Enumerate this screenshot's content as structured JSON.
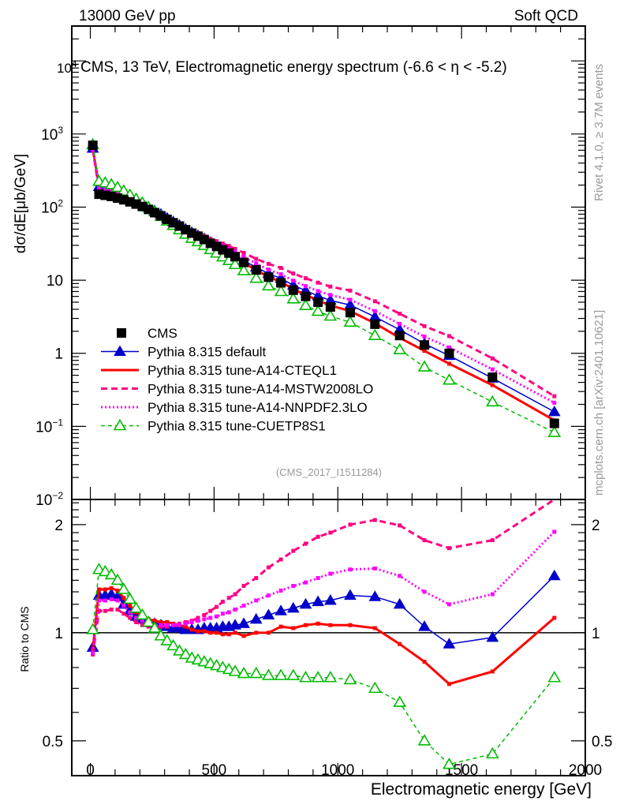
{
  "header": {
    "left": "13000 GeV pp",
    "right": "Soft QCD",
    "title": "CMS, 13 TeV, Electromagnetic energy spectrum (-6.6 < η < -5.2)",
    "side_top": "Rivet 4.1.0, ≥ 3.7M events",
    "side_bottom": "mcplots.cern.ch [arXiv:2401.10621]",
    "analysis_id": "(CMS_2017_I1511284)"
  },
  "colors": {
    "cms": "#000000",
    "default": "#0000cc",
    "cteql1": "#ff0000",
    "mstw": "#ff0080",
    "nnpdf": "#ff00ff",
    "cuetp8s1": "#00bb00"
  },
  "chart_data": [
    {
      "type": "line",
      "title": "CMS, 13 TeV, Electromagnetic energy spectrum (-6.6 < η < -5.2)",
      "xlabel": "Electromagnetic energy [GeV]",
      "ylabel": "dσ/dE[μb/GeV]",
      "yscale": "log",
      "xlim": [
        -75,
        2000
      ],
      "ylim": [
        0.01,
        30000
      ],
      "ytick_labels": [
        "10^-2",
        "10^-1",
        "1",
        "10",
        "10^2",
        "10^3",
        "10^4"
      ],
      "xtick_labels": [
        "0",
        "500",
        "1000",
        "1500",
        "2000"
      ],
      "legend_position": "bottom-left",
      "x": [
        10,
        35,
        60,
        85,
        110,
        135,
        160,
        185,
        210,
        235,
        260,
        285,
        310,
        335,
        360,
        385,
        410,
        435,
        460,
        485,
        510,
        535,
        560,
        585,
        620,
        670,
        720,
        770,
        820,
        870,
        920,
        970,
        1050,
        1150,
        1250,
        1350,
        1450,
        1625,
        1875
      ],
      "series": [
        {
          "name": "CMS",
          "key": "cms",
          "style": "square",
          "values": [
            700,
            150,
            145,
            140,
            133,
            126,
            118,
            110,
            102,
            93,
            84,
            76,
            68,
            61,
            55,
            49,
            44,
            40,
            36,
            32,
            29,
            26,
            23.5,
            21,
            17.5,
            13.8,
            11.0,
            9.2,
            7.3,
            6.0,
            5.0,
            4.3,
            3.6,
            2.5,
            1.75,
            1.3,
            1.0,
            0.47,
            0.11
          ]
        },
        {
          "name": "Pythia 8.315 default",
          "key": "default",
          "style": "solid-filled-triangle",
          "ratio": [
            0.91,
            1.27,
            1.27,
            1.28,
            1.26,
            1.2,
            1.15,
            1.11,
            1.09,
            1.07,
            1.06,
            1.05,
            1.04,
            1.03,
            1.03,
            1.02,
            1.02,
            1.02,
            1.03,
            1.03,
            1.03,
            1.04,
            1.04,
            1.05,
            1.06,
            1.09,
            1.12,
            1.15,
            1.17,
            1.2,
            1.22,
            1.23,
            1.27,
            1.26,
            1.2,
            1.04,
            0.93,
            0.97,
            1.44
          ]
        },
        {
          "name": "Pythia 8.315 tune-A14-CTEQL1",
          "key": "cteql1",
          "style": "solid-thick",
          "ratio": [
            0.9,
            1.32,
            1.32,
            1.33,
            1.31,
            1.25,
            1.19,
            1.14,
            1.11,
            1.09,
            1.08,
            1.07,
            1.07,
            1.06,
            1.05,
            1.04,
            1.02,
            1.01,
            1.01,
            1.0,
            1.0,
            0.99,
            0.99,
            1.0,
            0.98,
            1.0,
            1.0,
            1.04,
            1.03,
            1.05,
            1.06,
            1.05,
            1.05,
            1.03,
            0.93,
            0.83,
            0.72,
            0.78,
            1.1
          ]
        },
        {
          "name": "Pythia 8.315 tune-A14-MSTW2008LO",
          "key": "mstw",
          "style": "dashed",
          "ratio": [
            0.87,
            1.15,
            1.15,
            1.16,
            1.16,
            1.13,
            1.1,
            1.07,
            1.05,
            1.04,
            1.04,
            1.04,
            1.04,
            1.05,
            1.06,
            1.07,
            1.08,
            1.1,
            1.12,
            1.15,
            1.18,
            1.22,
            1.25,
            1.28,
            1.35,
            1.42,
            1.52,
            1.6,
            1.69,
            1.77,
            1.85,
            1.9,
            2.0,
            2.06,
            1.99,
            1.81,
            1.72,
            1.81,
            2.35
          ]
        },
        {
          "name": "Pythia 8.315 tune-A14-NNPDF2.3LO",
          "key": "nnpdf",
          "style": "dotted",
          "ratio": [
            0.88,
            1.23,
            1.23,
            1.24,
            1.23,
            1.19,
            1.14,
            1.1,
            1.08,
            1.06,
            1.05,
            1.05,
            1.05,
            1.05,
            1.05,
            1.06,
            1.07,
            1.08,
            1.09,
            1.1,
            1.11,
            1.13,
            1.14,
            1.16,
            1.19,
            1.23,
            1.27,
            1.31,
            1.35,
            1.38,
            1.42,
            1.46,
            1.5,
            1.51,
            1.44,
            1.3,
            1.2,
            1.28,
            1.91
          ]
        },
        {
          "name": "Pythia 8.315 tune-CUETP8S1",
          "key": "cuetp8s1",
          "style": "dashed-open-triangle",
          "ratio": [
            1.02,
            1.5,
            1.48,
            1.45,
            1.4,
            1.32,
            1.24,
            1.17,
            1.12,
            1.07,
            1.03,
            0.98,
            0.95,
            0.92,
            0.89,
            0.87,
            0.85,
            0.84,
            0.83,
            0.82,
            0.81,
            0.8,
            0.79,
            0.78,
            0.77,
            0.77,
            0.76,
            0.76,
            0.76,
            0.75,
            0.75,
            0.75,
            0.74,
            0.7,
            0.64,
            0.5,
            0.43,
            0.46,
            0.75
          ]
        }
      ]
    },
    {
      "type": "line",
      "title": "",
      "xlabel": "Electromagnetic energy [GeV]",
      "ylabel": "Ratio to CMS",
      "yscale": "log",
      "xlim": [
        -75,
        2000
      ],
      "ylim": [
        0.4,
        2.35
      ],
      "ytick_labels": [
        "0.5",
        "1",
        "2"
      ],
      "reference_line": 1,
      "series_from": "chart_data.0.series[].ratio"
    }
  ]
}
